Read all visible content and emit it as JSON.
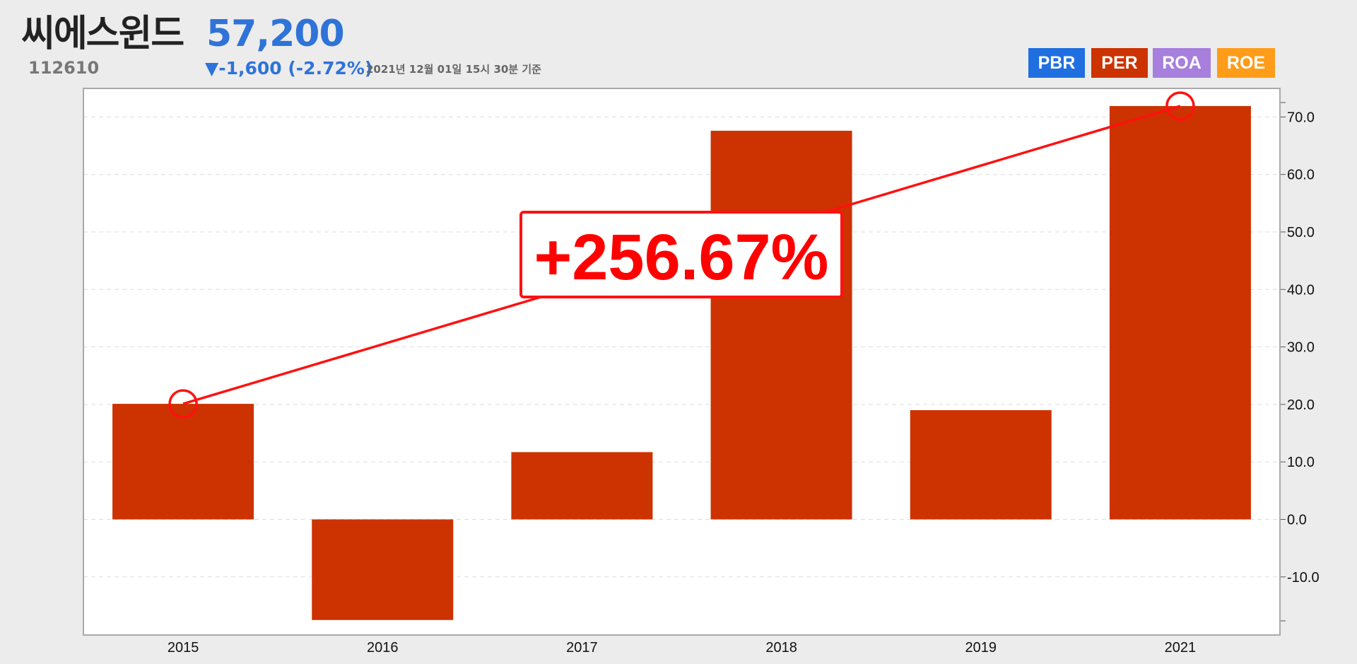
{
  "header": {
    "company_name": "씨에스윈드",
    "ticker": "112610",
    "price": "57,200",
    "change": "▼-1,600 (-2.72%)",
    "timestamp": "2021년 12월 01일 15시 30분 기준"
  },
  "tabs": [
    {
      "label": "PBR",
      "color": "#1f6fe0"
    },
    {
      "label": "PER",
      "color": "#cc3300"
    },
    {
      "label": "ROA",
      "color": "#a77fdc"
    },
    {
      "label": "ROE",
      "color": "#ff9c19"
    }
  ],
  "colors": {
    "bar": "#cc3300",
    "trend": "#ff1111",
    "grid": "#dddddd"
  },
  "annotation": {
    "label": "+256.67%",
    "from_category": "2015",
    "to_category": "2021"
  },
  "chart_data": {
    "type": "bar",
    "categories": [
      "2015",
      "2016",
      "2017",
      "2018",
      "2019",
      "2021"
    ],
    "values": [
      20.1,
      -17.5,
      11.7,
      67.6,
      19.0,
      71.9
    ],
    "ylim": [
      -17.5,
      75
    ],
    "yticks": [
      "70.0",
      "60.0",
      "50.0",
      "40.0",
      "30.0",
      "20.0",
      "10.0",
      "0.0",
      "-10.0"
    ],
    "grid": true,
    "legend": "none"
  }
}
